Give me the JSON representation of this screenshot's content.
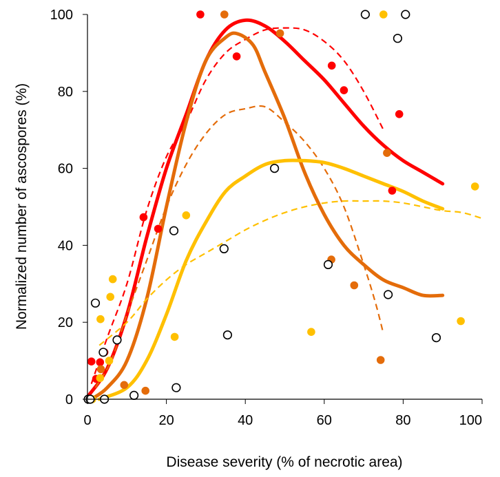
{
  "chart_data": {
    "type": "scatter",
    "xlabel": "Disease severity (% of necrotic area)",
    "ylabel": "Normalized number of ascospores (%)",
    "xlim": [
      0,
      100
    ],
    "ylim": [
      0,
      100
    ],
    "x_ticks": [
      "0",
      "20",
      "40",
      "60",
      "80",
      "100"
    ],
    "y_ticks": [
      "0",
      "20",
      "40",
      "60",
      "80",
      "100"
    ],
    "grid": false,
    "legend": "none",
    "series": [
      {
        "color": "#ff0000",
        "marker": "filled-circle",
        "points": [
          [
            0.3,
            0
          ],
          [
            0.5,
            0.3
          ],
          [
            1,
            9.8
          ],
          [
            2.2,
            5.3
          ],
          [
            3.2,
            9.6
          ],
          [
            4.3,
            12.2
          ],
          [
            14.2,
            47.3
          ],
          [
            17.9,
            44.3
          ],
          [
            28.6,
            100
          ],
          [
            37.8,
            89.1
          ],
          [
            61.9,
            86.7
          ],
          [
            65,
            80.3
          ],
          [
            77.2,
            54.2
          ],
          [
            79,
            74.1
          ]
        ],
        "fit_solid": [
          [
            0,
            0.6
          ],
          [
            5,
            8
          ],
          [
            10,
            22
          ],
          [
            15,
            42
          ],
          [
            20,
            60
          ],
          [
            25,
            74
          ],
          [
            30,
            88
          ],
          [
            35,
            96
          ],
          [
            40,
            98.5
          ],
          [
            45,
            97
          ],
          [
            50,
            93
          ],
          [
            55,
            88
          ],
          [
            60,
            83
          ],
          [
            65,
            77
          ],
          [
            70,
            71
          ],
          [
            75,
            66
          ],
          [
            80,
            62
          ],
          [
            85,
            59
          ],
          [
            90,
            56
          ]
        ],
        "fit_dashed": [
          [
            1,
            4
          ],
          [
            5,
            16
          ],
          [
            10,
            30
          ],
          [
            15,
            49
          ],
          [
            20,
            63
          ],
          [
            25,
            72
          ],
          [
            30,
            83
          ],
          [
            35,
            90
          ],
          [
            40,
            93.5
          ],
          [
            45,
            96
          ],
          [
            50,
            96.5
          ],
          [
            55,
            96
          ],
          [
            60,
            93
          ],
          [
            65,
            88
          ],
          [
            70,
            80
          ],
          [
            75,
            70
          ]
        ]
      },
      {
        "color": "#e46c0a",
        "marker": "filled-circle",
        "points": [
          [
            0.2,
            0
          ],
          [
            0.8,
            0
          ],
          [
            3.4,
            7.8
          ],
          [
            9.3,
            3.7
          ],
          [
            14.7,
            2.2
          ],
          [
            34.7,
            100
          ],
          [
            48.8,
            95.1
          ],
          [
            61.8,
            36.3
          ],
          [
            67.6,
            29.6
          ],
          [
            74.3,
            10.2
          ],
          [
            75.9,
            64
          ]
        ],
        "fit_solid": [
          [
            1,
            0
          ],
          [
            5,
            3
          ],
          [
            10,
            10
          ],
          [
            15,
            26
          ],
          [
            20,
            50
          ],
          [
            25,
            72
          ],
          [
            30,
            88
          ],
          [
            35,
            94
          ],
          [
            38,
            95
          ],
          [
            42,
            92
          ],
          [
            45,
            85
          ],
          [
            50,
            73
          ],
          [
            55,
            59
          ],
          [
            60,
            48
          ],
          [
            65,
            40
          ],
          [
            70,
            35
          ],
          [
            75,
            31
          ],
          [
            80,
            29
          ],
          [
            85,
            27
          ],
          [
            90,
            27
          ]
        ],
        "fit_dashed": [
          [
            2,
            3
          ],
          [
            6,
            10
          ],
          [
            10,
            22
          ],
          [
            15,
            36
          ],
          [
            20,
            50
          ],
          [
            25,
            61
          ],
          [
            30,
            69
          ],
          [
            35,
            74
          ],
          [
            40,
            75.5
          ],
          [
            45,
            76
          ],
          [
            50,
            72
          ],
          [
            55,
            67
          ],
          [
            60,
            60
          ],
          [
            65,
            50
          ],
          [
            70,
            35
          ],
          [
            73,
            25
          ],
          [
            75,
            17
          ]
        ]
      },
      {
        "color": "#ffc000",
        "marker": "filled-circle",
        "points": [
          [
            0.4,
            0
          ],
          [
            1.2,
            0
          ],
          [
            3.2,
            5.5
          ],
          [
            3.3,
            20.8
          ],
          [
            5.5,
            10
          ],
          [
            5.8,
            26.6
          ],
          [
            6.4,
            31.2
          ],
          [
            22.1,
            16.2
          ],
          [
            25,
            47.8
          ],
          [
            56.7,
            17.5
          ],
          [
            75,
            100
          ],
          [
            94.6,
            20.3
          ],
          [
            98.2,
            55.3
          ]
        ],
        "fit_solid": [
          [
            3,
            0
          ],
          [
            10,
            3
          ],
          [
            15,
            10
          ],
          [
            20,
            22
          ],
          [
            25,
            36
          ],
          [
            30,
            46
          ],
          [
            35,
            54
          ],
          [
            40,
            58
          ],
          [
            45,
            61
          ],
          [
            50,
            62
          ],
          [
            55,
            62
          ],
          [
            60,
            61.5
          ],
          [
            65,
            60
          ],
          [
            70,
            58
          ],
          [
            75,
            56
          ],
          [
            80,
            54
          ],
          [
            85,
            51.5
          ],
          [
            90,
            49.5
          ]
        ],
        "fit_dashed": [
          [
            3,
            14
          ],
          [
            10,
            20
          ],
          [
            15,
            26
          ],
          [
            20,
            31
          ],
          [
            25,
            35
          ],
          [
            30,
            38
          ],
          [
            35,
            41
          ],
          [
            40,
            44
          ],
          [
            45,
            46.5
          ],
          [
            50,
            48.5
          ],
          [
            55,
            50
          ],
          [
            60,
            51
          ],
          [
            65,
            51.5
          ],
          [
            70,
            51.5
          ],
          [
            75,
            51.5
          ],
          [
            80,
            51
          ],
          [
            85,
            50
          ],
          [
            90,
            49
          ],
          [
            95,
            48.5
          ],
          [
            100,
            47
          ]
        ]
      },
      {
        "color": "#000000",
        "marker": "open-circle",
        "points": [
          [
            0.2,
            0
          ],
          [
            0.7,
            0
          ],
          [
            2,
            25
          ],
          [
            4,
            12.2
          ],
          [
            4.3,
            0
          ],
          [
            7.5,
            15.4
          ],
          [
            11.8,
            1
          ],
          [
            21.9,
            43.8
          ],
          [
            22.5,
            3
          ],
          [
            34.6,
            39.1
          ],
          [
            35.5,
            16.7
          ],
          [
            47.4,
            60
          ],
          [
            61,
            35
          ],
          [
            70.4,
            100
          ],
          [
            76.2,
            27.2
          ],
          [
            78.6,
            93.8
          ],
          [
            80.6,
            100
          ],
          [
            88.4,
            16
          ]
        ]
      }
    ]
  }
}
